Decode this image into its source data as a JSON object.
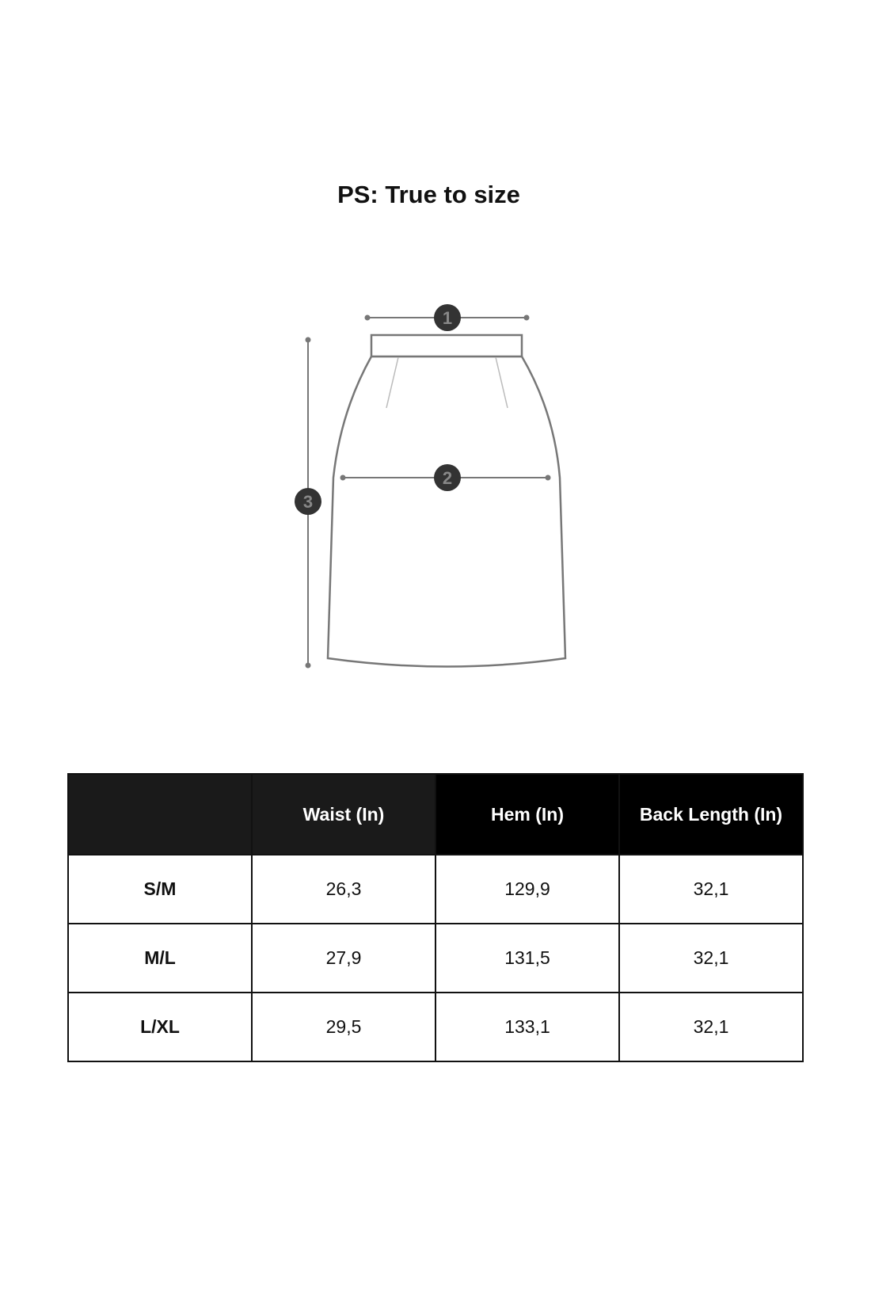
{
  "title": "PS: True to size",
  "diagram": {
    "markers": [
      "1",
      "2",
      "3"
    ]
  },
  "table": {
    "headers": [
      "",
      "Waist (In)",
      "Hem (In)",
      "Back Length (In)"
    ],
    "rows": [
      [
        "S/M",
        "26,3",
        "129,9",
        "32,1"
      ],
      [
        "M/L",
        "27,9",
        "131,5",
        "32,1"
      ],
      [
        "L/XL",
        "29,5",
        "133,1",
        "32,1"
      ]
    ]
  }
}
